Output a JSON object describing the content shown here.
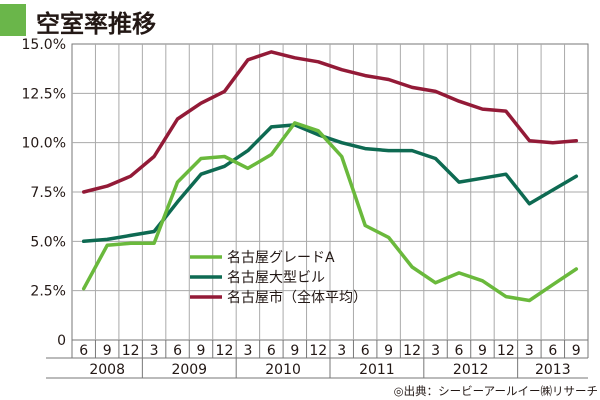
{
  "header": {
    "title": "空室率推移"
  },
  "source": "◎出典：シービーアールイー㈱リサーチ",
  "colors": {
    "accent": "#6ab64a",
    "grid": "#aaaaaa",
    "series_a": "#6ab93c",
    "series_b": "#0e6a52",
    "series_c": "#931a37"
  },
  "chart_data": {
    "type": "line",
    "title": "空室率推移",
    "xlabel": "",
    "ylabel": "",
    "ylim": [
      0,
      15
    ],
    "ytick_labels": [
      "0",
      "2.5%",
      "5.0%",
      "7.5%",
      "10.0%",
      "12.5%",
      "15.0%"
    ],
    "ytick_values": [
      0,
      2.5,
      5.0,
      7.5,
      10.0,
      12.5,
      15.0
    ],
    "x_month_labels": [
      "6",
      "9",
      "12",
      "3",
      "6",
      "9",
      "12",
      "3",
      "6",
      "9",
      "12",
      "3",
      "6",
      "9",
      "12",
      "3",
      "6",
      "9",
      "12",
      "3",
      "6",
      "9"
    ],
    "x_year_labels": [
      "2008",
      "2009",
      "2010",
      "2011",
      "2012",
      "2013"
    ],
    "grid": true,
    "legend_position": "center-left",
    "series": [
      {
        "name": "名古屋グレードA",
        "values": [
          2.6,
          4.8,
          4.9,
          4.9,
          8.0,
          9.2,
          9.3,
          8.7,
          9.4,
          11.0,
          10.6,
          9.3,
          5.8,
          5.2,
          3.7,
          2.9,
          3.4,
          3.0,
          2.2,
          2.0,
          2.8,
          3.6
        ]
      },
      {
        "name": "名古屋大型ビル",
        "values": [
          5.0,
          5.1,
          5.3,
          5.5,
          7.0,
          8.4,
          8.8,
          9.6,
          10.8,
          10.9,
          10.4,
          10.0,
          9.7,
          9.6,
          9.6,
          9.2,
          8.0,
          8.2,
          8.4,
          6.9,
          7.6,
          8.3
        ]
      },
      {
        "name": "名古屋市（全体平均）",
        "values": [
          7.5,
          7.8,
          8.3,
          9.3,
          11.2,
          12.0,
          12.6,
          14.2,
          14.6,
          14.3,
          14.1,
          13.7,
          13.4,
          13.2,
          12.8,
          12.6,
          12.1,
          11.7,
          11.6,
          10.1,
          10.0,
          10.1
        ]
      }
    ]
  }
}
